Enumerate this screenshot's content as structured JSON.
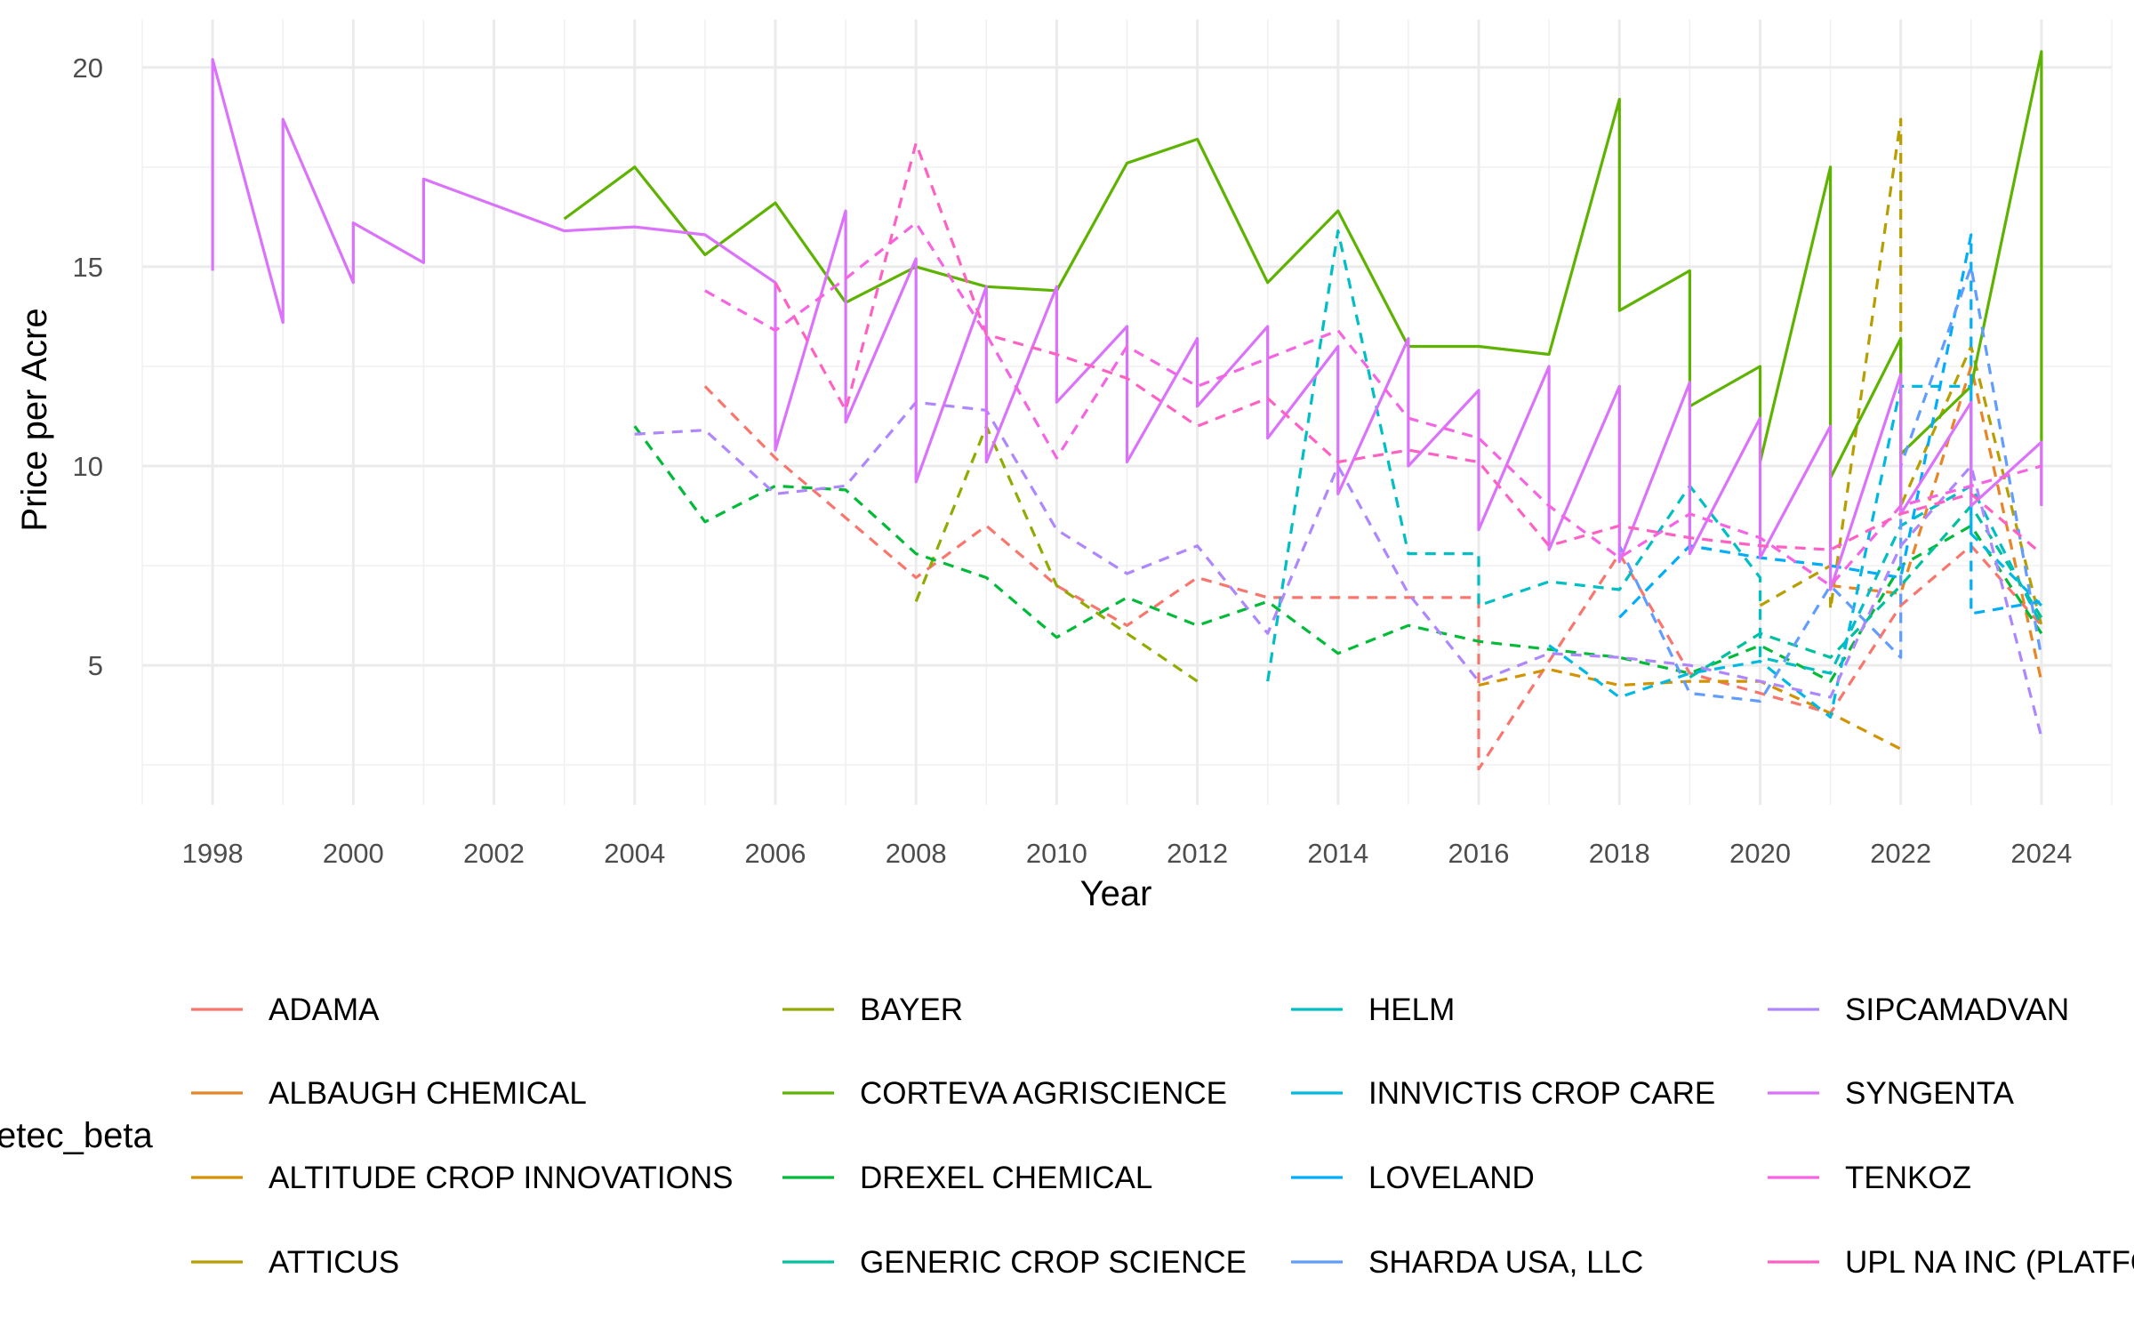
{
  "chart_data": {
    "type": "line",
    "xlabel": "Year",
    "ylabel": "Price per Acre",
    "legend_title": "etec_beta",
    "legend_position": "bottom",
    "grid": true,
    "xlim": [
      1997,
      2025
    ],
    "ylim": [
      1.5,
      21.2
    ],
    "x_ticks": [
      1998,
      2000,
      2002,
      2004,
      2006,
      2008,
      2010,
      2012,
      2014,
      2016,
      2018,
      2020,
      2022,
      2024
    ],
    "y_ticks": [
      5,
      10,
      15,
      20
    ],
    "colors": {
      "ADAMA": "#F8766D",
      "ALBAUGH CHEMICAL": "#E88526",
      "ALTITUDE CROP INNOVATIONS": "#D39200",
      "ATTICUS": "#B79F00",
      "BAYER": "#93AA00",
      "CORTEVA AGRISCIENCE": "#5EB300",
      "DREXEL CHEMICAL": "#00BA38",
      "GENERIC CROP SCIENCE": "#00C19F",
      "HELM": "#00BFC4",
      "INNVICTIS CROP CARE": "#00B9E3",
      "LOVELAND": "#00ADFA",
      "SHARDA USA, LLC": "#619CFF",
      "SIPCAMADVAN": "#AE87FF",
      "SYNGENTA": "#DB72FB",
      "TENKOZ": "#F564E3",
      "UPL NA INC (PLATFORM)": "#FF61C3"
    },
    "legend": [
      "ADAMA",
      "ALBAUGH CHEMICAL",
      "ALTITUDE CROP INNOVATIONS",
      "ATTICUS",
      "BAYER",
      "CORTEVA AGRISCIENCE",
      "DREXEL CHEMICAL",
      "GENERIC CROP SCIENCE",
      "HELM",
      "INNVICTIS CROP CARE",
      "LOVELAND",
      "SHARDA USA, LLC",
      "SIPCAMADVAN",
      "SYNGENTA",
      "TENKOZ",
      "UPL NA INC (PLATFORM)"
    ],
    "series": [
      {
        "name": "ADAMA",
        "dash": true,
        "points": [
          [
            2005,
            12.0
          ],
          [
            2006,
            10.2
          ],
          [
            2008,
            7.2
          ],
          [
            2009,
            8.5
          ],
          [
            2010,
            7.0
          ],
          [
            2011,
            6.0
          ],
          [
            2012,
            7.2
          ],
          [
            2013,
            6.7
          ],
          [
            2014,
            6.7
          ],
          [
            2016,
            6.7
          ],
          [
            2016,
            2.4
          ],
          [
            2018,
            7.8
          ],
          [
            2019,
            4.8
          ],
          [
            2021,
            3.8
          ],
          [
            2022,
            6.5
          ],
          [
            2023,
            8.0
          ],
          [
            2024,
            6.0
          ]
        ]
      },
      {
        "name": "ALBAUGH CHEMICAL",
        "dash": true,
        "points": [
          [
            2021,
            7.0
          ],
          [
            2022,
            6.8
          ],
          [
            2023,
            12.5
          ],
          [
            2024,
            4.6
          ]
        ]
      },
      {
        "name": "ALTITUDE CROP INNOVATIONS",
        "dash": true,
        "points": [
          [
            2016,
            4.5
          ],
          [
            2017,
            4.9
          ],
          [
            2018,
            4.5
          ],
          [
            2019,
            4.6
          ],
          [
            2020,
            4.6
          ],
          [
            2021,
            3.8
          ],
          [
            2022,
            2.9
          ]
        ]
      },
      {
        "name": "ATTICUS",
        "dash": true,
        "points": [
          [
            2020,
            6.5
          ],
          [
            2021,
            7.5
          ],
          [
            2021,
            6.4
          ],
          [
            2022,
            18.7
          ],
          [
            2022,
            9.0
          ],
          [
            2023,
            13.0
          ],
          [
            2024,
            6.0
          ]
        ]
      },
      {
        "name": "BAYER",
        "dash": true,
        "points": [
          [
            2008,
            6.6
          ],
          [
            2009,
            11.0
          ],
          [
            2010,
            7.0
          ],
          [
            2011,
            5.8
          ],
          [
            2012,
            4.6
          ]
        ]
      },
      {
        "name": "CORTEVA AGRISCIENCE",
        "dash": false,
        "points": [
          [
            2003,
            16.2
          ],
          [
            2004,
            17.5
          ],
          [
            2005,
            15.3
          ],
          [
            2006,
            16.6
          ],
          [
            2007,
            14.1
          ],
          [
            2008,
            15.0
          ],
          [
            2009,
            14.5
          ],
          [
            2010,
            14.4
          ],
          [
            2011,
            17.6
          ],
          [
            2012,
            18.2
          ],
          [
            2013,
            14.6
          ],
          [
            2014,
            16.4
          ],
          [
            2015,
            13.0
          ],
          [
            2016,
            13.0
          ],
          [
            2017,
            12.8
          ],
          [
            2018,
            19.2
          ],
          [
            2018,
            13.9
          ],
          [
            2019,
            14.9
          ],
          [
            2019,
            11.5
          ],
          [
            2020,
            12.5
          ],
          [
            2020,
            10.1
          ],
          [
            2021,
            17.5
          ],
          [
            2021,
            9.7
          ],
          [
            2022,
            13.2
          ],
          [
            2022,
            10.3
          ],
          [
            2023,
            12.0
          ],
          [
            2024,
            20.4
          ],
          [
            2024,
            9.0
          ]
        ]
      },
      {
        "name": "DREXEL CHEMICAL",
        "dash": true,
        "points": [
          [
            2004,
            11.0
          ],
          [
            2005,
            8.6
          ],
          [
            2006,
            9.5
          ],
          [
            2007,
            9.4
          ],
          [
            2008,
            7.8
          ],
          [
            2009,
            7.2
          ],
          [
            2010,
            5.7
          ],
          [
            2011,
            6.7
          ],
          [
            2012,
            6.0
          ],
          [
            2013,
            6.6
          ],
          [
            2014,
            5.3
          ],
          [
            2015,
            6.0
          ],
          [
            2016,
            5.6
          ],
          [
            2017,
            5.4
          ],
          [
            2018,
            5.2
          ],
          [
            2019,
            4.8
          ],
          [
            2020,
            5.5
          ],
          [
            2021,
            4.6
          ],
          [
            2022,
            7.5
          ],
          [
            2023,
            8.5
          ],
          [
            2024,
            5.8
          ]
        ]
      },
      {
        "name": "GENERIC CROP SCIENCE",
        "dash": true,
        "points": [
          [
            2019,
            4.7
          ],
          [
            2020,
            5.8
          ],
          [
            2021,
            5.2
          ],
          [
            2022,
            7.0
          ],
          [
            2023,
            9.0
          ],
          [
            2024,
            6.2
          ]
        ]
      },
      {
        "name": "HELM",
        "dash": true,
        "points": [
          [
            2013,
            4.6
          ],
          [
            2014,
            15.9
          ],
          [
            2015,
            7.8
          ],
          [
            2016,
            7.8
          ],
          [
            2016,
            6.5
          ],
          [
            2017,
            7.1
          ],
          [
            2018,
            6.9
          ],
          [
            2019,
            9.5
          ],
          [
            2020,
            7.2
          ],
          [
            2020,
            5.2
          ],
          [
            2021,
            4.8
          ],
          [
            2022,
            8.5
          ],
          [
            2023,
            9.5
          ],
          [
            2024,
            6.0
          ]
        ]
      },
      {
        "name": "INNVICTIS CROP CARE",
        "dash": true,
        "points": [
          [
            2017,
            5.5
          ],
          [
            2018,
            4.2
          ],
          [
            2019,
            4.8
          ],
          [
            2020,
            5.1
          ],
          [
            2021,
            3.7
          ],
          [
            2022,
            12.0
          ],
          [
            2023,
            12.0
          ],
          [
            2023,
            8.3
          ],
          [
            2024,
            6.5
          ]
        ]
      },
      {
        "name": "LOVELAND",
        "dash": true,
        "points": [
          [
            2018,
            6.2
          ],
          [
            2019,
            8.0
          ],
          [
            2020,
            7.7
          ],
          [
            2021,
            7.5
          ],
          [
            2022,
            7.2
          ],
          [
            2023,
            15.8
          ],
          [
            2023,
            6.3
          ],
          [
            2024,
            6.6
          ]
        ]
      },
      {
        "name": "SHARDA USA, LLC",
        "dash": true,
        "points": [
          [
            2018,
            8.0
          ],
          [
            2019,
            4.3
          ],
          [
            2020,
            4.1
          ],
          [
            2021,
            7.0
          ],
          [
            2022,
            5.2
          ],
          [
            2022,
            10.0
          ],
          [
            2023,
            15.0
          ],
          [
            2024,
            5.2
          ]
        ]
      },
      {
        "name": "SIPCAMADVAN",
        "dash": true,
        "points": [
          [
            2004,
            10.8
          ],
          [
            2005,
            10.9
          ],
          [
            2006,
            9.3
          ],
          [
            2007,
            9.5
          ],
          [
            2008,
            11.6
          ],
          [
            2009,
            11.4
          ],
          [
            2010,
            8.4
          ],
          [
            2011,
            7.3
          ],
          [
            2012,
            8.0
          ],
          [
            2013,
            5.8
          ],
          [
            2014,
            10.0
          ],
          [
            2015,
            6.8
          ],
          [
            2016,
            4.6
          ],
          [
            2017,
            5.3
          ],
          [
            2018,
            5.2
          ],
          [
            2019,
            5.0
          ],
          [
            2020,
            4.6
          ],
          [
            2021,
            4.2
          ],
          [
            2022,
            8.0
          ],
          [
            2023,
            10.0
          ],
          [
            2024,
            3.2
          ]
        ]
      },
      {
        "name": "SYNGENTA",
        "dash": false,
        "points": [
          [
            1998,
            14.9
          ],
          [
            1998,
            20.2
          ],
          [
            1999,
            13.6
          ],
          [
            1999,
            18.7
          ],
          [
            2000,
            14.6
          ],
          [
            2000,
            16.1
          ],
          [
            2001,
            15.1
          ],
          [
            2001,
            17.2
          ],
          [
            2003,
            15.9
          ],
          [
            2004,
            16.0
          ],
          [
            2005,
            15.8
          ],
          [
            2006,
            14.6
          ],
          [
            2006,
            10.4
          ],
          [
            2007,
            16.4
          ],
          [
            2007,
            11.1
          ],
          [
            2008,
            15.2
          ],
          [
            2008,
            9.6
          ],
          [
            2009,
            14.5
          ],
          [
            2009,
            10.1
          ],
          [
            2010,
            14.5
          ],
          [
            2010,
            11.6
          ],
          [
            2011,
            13.5
          ],
          [
            2011,
            10.1
          ],
          [
            2012,
            13.2
          ],
          [
            2012,
            11.5
          ],
          [
            2013,
            13.5
          ],
          [
            2013,
            10.7
          ],
          [
            2014,
            13.0
          ],
          [
            2014,
            9.3
          ],
          [
            2015,
            13.2
          ],
          [
            2015,
            10.0
          ],
          [
            2016,
            11.9
          ],
          [
            2016,
            8.4
          ],
          [
            2017,
            12.5
          ],
          [
            2017,
            7.9
          ],
          [
            2018,
            12.0
          ],
          [
            2018,
            7.6
          ],
          [
            2019,
            12.1
          ],
          [
            2019,
            7.8
          ],
          [
            2020,
            11.2
          ],
          [
            2020,
            7.7
          ],
          [
            2021,
            11.0
          ],
          [
            2021,
            6.9
          ],
          [
            2022,
            12.3
          ],
          [
            2022,
            8.8
          ],
          [
            2023,
            11.6
          ],
          [
            2023,
            9.0
          ],
          [
            2024,
            10.6
          ],
          [
            2024,
            9.0
          ]
        ]
      },
      {
        "name": "TENKOZ",
        "dash": true,
        "points": [
          [
            2005,
            14.4
          ],
          [
            2006,
            13.4
          ],
          [
            2007,
            14.7
          ],
          [
            2008,
            16.1
          ],
          [
            2009,
            13.3
          ],
          [
            2010,
            10.2
          ],
          [
            2011,
            13.0
          ],
          [
            2012,
            12.0
          ],
          [
            2013,
            12.7
          ],
          [
            2014,
            13.4
          ],
          [
            2015,
            11.2
          ],
          [
            2016,
            10.7
          ],
          [
            2017,
            9.0
          ],
          [
            2018,
            7.7
          ],
          [
            2019,
            8.8
          ],
          [
            2020,
            8.2
          ],
          [
            2021,
            7.0
          ],
          [
            2022,
            9.0
          ],
          [
            2023,
            9.5
          ],
          [
            2024,
            10.0
          ]
        ]
      },
      {
        "name": "UPL NA INC (PLATFORM)",
        "dash": true,
        "points": [
          [
            2006,
            14.6
          ],
          [
            2007,
            11.4
          ],
          [
            2008,
            18.1
          ],
          [
            2009,
            13.3
          ],
          [
            2010,
            12.8
          ],
          [
            2011,
            12.2
          ],
          [
            2012,
            11.0
          ],
          [
            2013,
            11.7
          ],
          [
            2014,
            10.1
          ],
          [
            2015,
            10.4
          ],
          [
            2016,
            10.1
          ],
          [
            2017,
            8.0
          ],
          [
            2018,
            8.5
          ],
          [
            2019,
            8.2
          ],
          [
            2020,
            8.0
          ],
          [
            2021,
            7.9
          ],
          [
            2022,
            8.8
          ],
          [
            2023,
            9.3
          ],
          [
            2024,
            7.8
          ]
        ]
      }
    ]
  }
}
